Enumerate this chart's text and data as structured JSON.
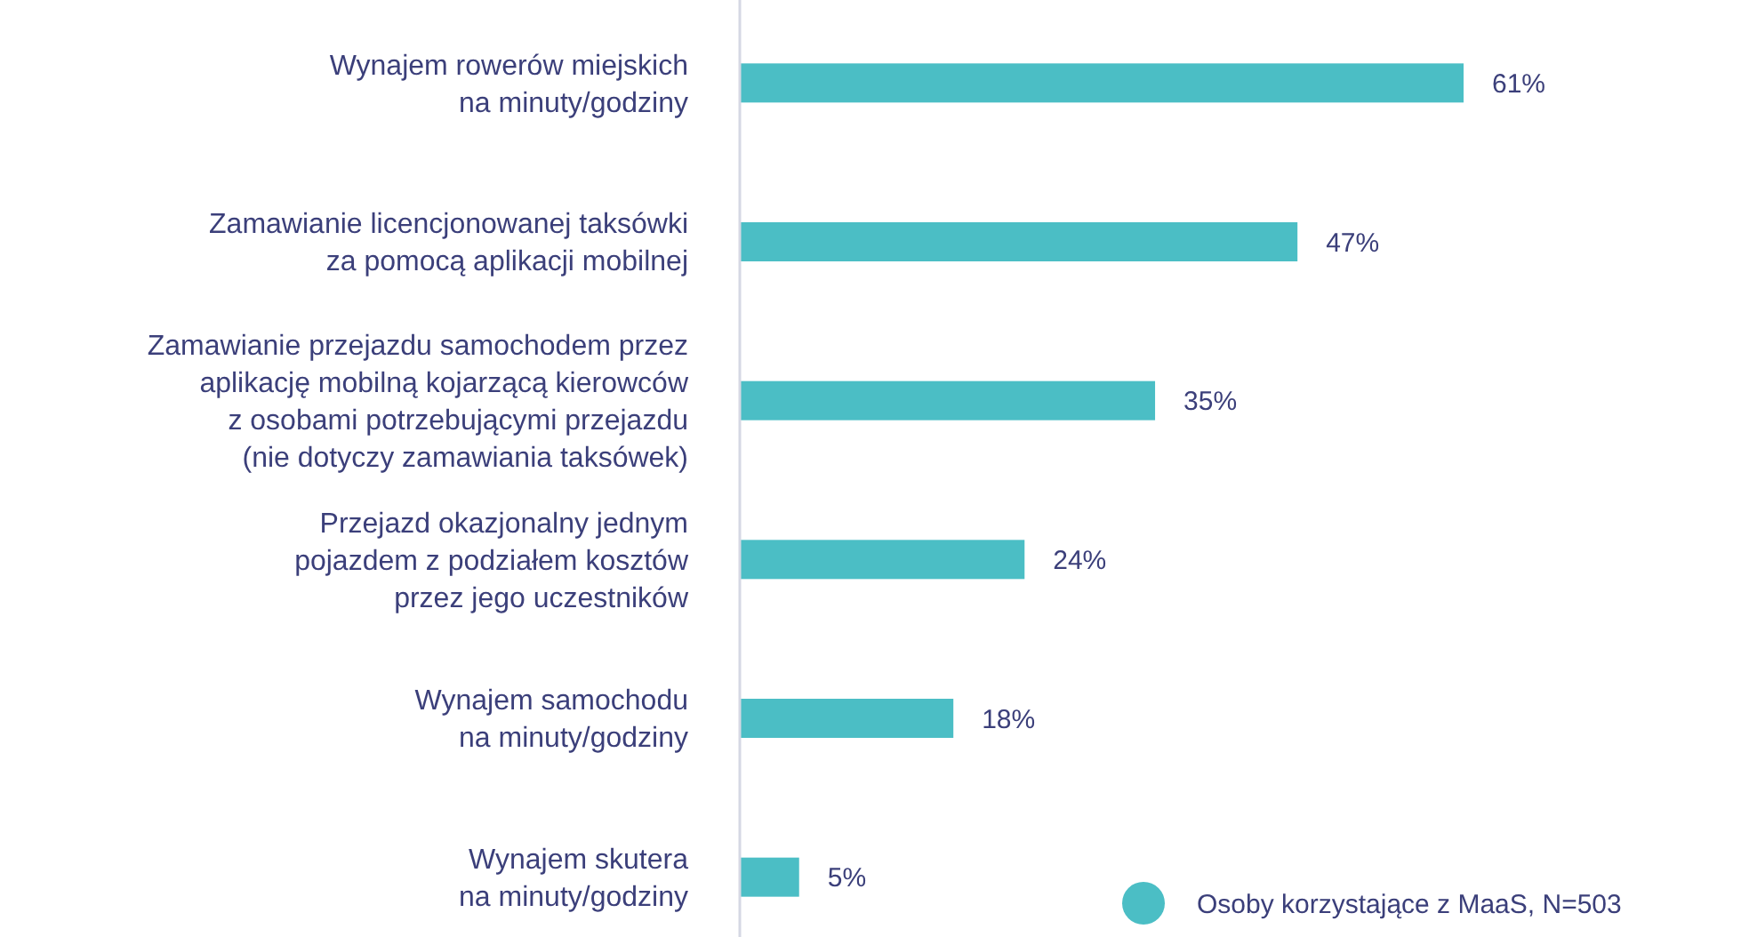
{
  "chart_data": {
    "type": "bar",
    "orientation": "horizontal",
    "categories": [
      "Wynajem rowerów miejskich\nna minuty/godziny",
      "Zamawianie licencjonowanej taksówki\nza pomocą aplikacji mobilnej",
      "Zamawianie przejazdu samochodem przez\naplikację mobilną kojarzącą kierowców\nz osobami potrzebującymi przejazdu\n(nie dotyczy zamawiania taksówek)",
      "Przejazd okazjonalny jednym\npojazdem z podziałem kosztów\nprzez jego uczestników",
      "Wynajem samochodu\nna minuty/godziny",
      "Wynajem skutera\nna minuty/godziny"
    ],
    "series": [
      {
        "name": "Osoby korzystające z MaaS, N=503",
        "color": "#4bbec5",
        "values": [
          61,
          47,
          35,
          24,
          18,
          5
        ],
        "value_labels": [
          "61%",
          "47%",
          "35%",
          "24%",
          "18%",
          "5%"
        ]
      }
    ],
    "legend": "bottom right"
  }
}
